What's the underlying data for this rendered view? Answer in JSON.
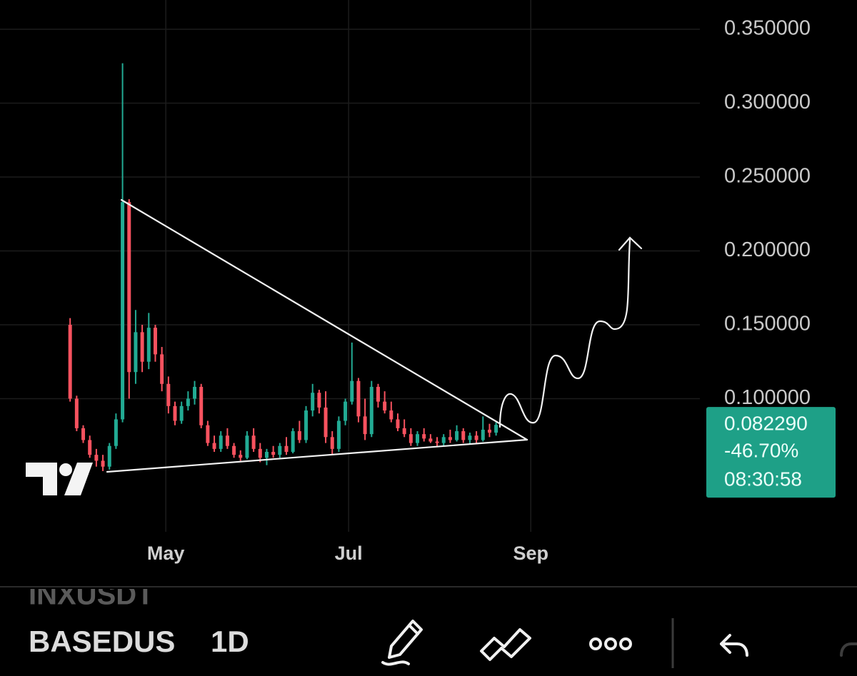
{
  "symbol_prev": "INXUSDT",
  "symbol": "BASEDUS",
  "interval": "1D",
  "chart_data": {
    "type": "candlestick",
    "categories": [
      null,
      null,
      null,
      null,
      null,
      null,
      null,
      null,
      null,
      null,
      null,
      null,
      null,
      null,
      null,
      null,
      null,
      null,
      null,
      null,
      null,
      null,
      null,
      null,
      null,
      null,
      null,
      null,
      null,
      null,
      null,
      null,
      null,
      null,
      null,
      null,
      null,
      null,
      null,
      null,
      null,
      null,
      null,
      null,
      null,
      null,
      null,
      null,
      null,
      null,
      null,
      null,
      null,
      null,
      null,
      null,
      null,
      null,
      null,
      null,
      null,
      null,
      null,
      null,
      null,
      null
    ],
    "open": [
      0.15,
      0.1,
      0.08,
      0.072,
      0.062,
      0.058,
      0.054,
      0.068,
      0.086,
      0.233,
      0.118,
      0.145,
      0.125,
      0.148,
      0.13,
      0.11,
      0.095,
      0.085,
      0.095,
      0.1,
      0.108,
      0.082,
      0.07,
      0.066,
      0.075,
      0.068,
      0.062,
      0.06,
      0.075,
      0.066,
      0.06,
      0.064,
      0.062,
      0.068,
      0.064,
      0.078,
      0.072,
      0.092,
      0.104,
      0.094,
      0.074,
      0.066,
      0.085,
      0.098,
      0.112,
      0.088,
      0.076,
      0.108,
      0.098,
      0.092,
      0.086,
      0.08,
      0.076,
      0.07,
      0.076,
      0.073,
      0.071,
      0.07,
      0.074,
      0.072,
      0.078,
      0.072,
      0.075,
      0.072,
      0.079,
      0.077
    ],
    "high": [
      0.1545,
      0.102,
      0.082,
      0.075,
      0.066,
      0.062,
      0.07,
      0.09,
      0.327,
      0.235,
      0.16,
      0.15,
      0.158,
      0.15,
      0.135,
      0.115,
      0.098,
      0.098,
      0.105,
      0.112,
      0.11,
      0.085,
      0.075,
      0.078,
      0.08,
      0.07,
      0.065,
      0.078,
      0.08,
      0.07,
      0.066,
      0.068,
      0.07,
      0.074,
      0.08,
      0.085,
      0.095,
      0.11,
      0.106,
      0.105,
      0.078,
      0.088,
      0.1,
      0.138,
      0.114,
      0.1,
      0.112,
      0.11,
      0.105,
      0.098,
      0.09,
      0.086,
      0.08,
      0.078,
      0.08,
      0.076,
      0.074,
      0.076,
      0.079,
      0.082,
      0.08,
      0.077,
      0.078,
      0.088,
      0.083,
      0.084
    ],
    "low": [
      0.098,
      0.078,
      0.07,
      0.06,
      0.054,
      0.051,
      0.052,
      0.066,
      0.084,
      0.1,
      0.11,
      0.118,
      0.12,
      0.125,
      0.105,
      0.09,
      0.082,
      0.083,
      0.092,
      0.096,
      0.08,
      0.068,
      0.064,
      0.064,
      0.066,
      0.06,
      0.058,
      0.059,
      0.064,
      0.057,
      0.055,
      0.06,
      0.06,
      0.062,
      0.063,
      0.07,
      0.07,
      0.088,
      0.09,
      0.07,
      0.062,
      0.064,
      0.082,
      0.096,
      0.084,
      0.072,
      0.074,
      0.094,
      0.09,
      0.084,
      0.078,
      0.074,
      0.068,
      0.068,
      0.071,
      0.07,
      0.068,
      0.068,
      0.07,
      0.071,
      0.07,
      0.069,
      0.07,
      0.071,
      0.074,
      0.075
    ],
    "close": [
      0.1,
      0.08,
      0.072,
      0.062,
      0.058,
      0.054,
      0.068,
      0.086,
      0.233,
      0.118,
      0.145,
      0.125,
      0.148,
      0.13,
      0.11,
      0.095,
      0.085,
      0.095,
      0.1,
      0.108,
      0.082,
      0.07,
      0.066,
      0.075,
      0.068,
      0.062,
      0.06,
      0.075,
      0.066,
      0.06,
      0.064,
      0.062,
      0.068,
      0.064,
      0.078,
      0.072,
      0.092,
      0.104,
      0.094,
      0.074,
      0.066,
      0.085,
      0.098,
      0.112,
      0.088,
      0.076,
      0.108,
      0.098,
      0.092,
      0.086,
      0.08,
      0.076,
      0.07,
      0.076,
      0.073,
      0.071,
      0.07,
      0.074,
      0.072,
      0.078,
      0.072,
      0.075,
      0.072,
      0.079,
      0.077,
      0.08229
    ],
    "up_color": "#22ab94",
    "down_color": "#f7525f",
    "ylim": [
      0.0099,
      0.3698
    ],
    "yticks": [
      {
        "value": 0.1,
        "label": "0.100000"
      },
      {
        "value": 0.15,
        "label": "0.150000"
      },
      {
        "value": 0.2,
        "label": "0.200000"
      },
      {
        "value": 0.25,
        "label": "0.250000"
      },
      {
        "value": 0.3,
        "label": "0.300000"
      },
      {
        "value": 0.35,
        "label": "0.350000"
      }
    ],
    "xlim": [
      -10.7,
      96.1
    ],
    "xticks": [
      {
        "value": 14.6,
        "label": "May"
      },
      {
        "value": 42.5,
        "label": "Jul"
      },
      {
        "value": 70.3,
        "label": "Sep"
      }
    ],
    "grid": true,
    "last_price": {
      "value": 0.08229,
      "label": "0.082290"
    },
    "change": "-46.70%",
    "countdown": "08:30:58",
    "tag_color": "#1ea087"
  }
}
